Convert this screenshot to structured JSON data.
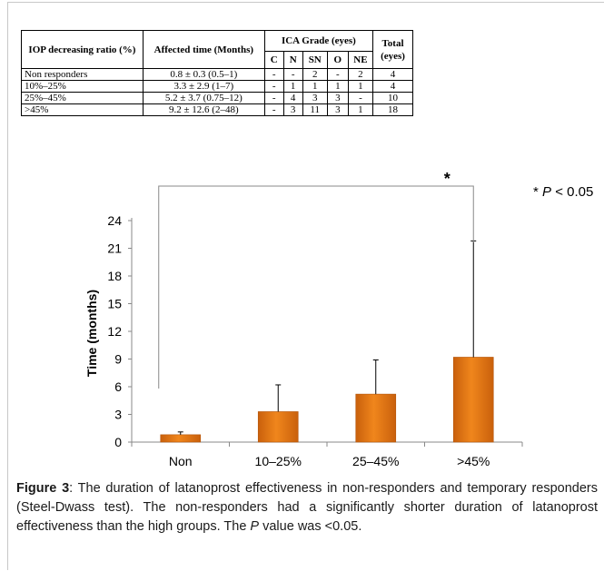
{
  "table": {
    "headers": {
      "ratio": "IOP decreasing ratio (%)",
      "time": "Affected time (Months)",
      "ica": "ICA Grade (eyes)",
      "total": "Total (eyes)",
      "sub": [
        "C",
        "N",
        "SN",
        "O",
        "NE"
      ]
    },
    "rows": [
      {
        "ratio": "Non responders",
        "time": "0.8 ± 0.3 (0.5–1)",
        "c": "-",
        "n": "-",
        "sn": "2",
        "o": "-",
        "ne": "2",
        "total": "4"
      },
      {
        "ratio": "10%–25%",
        "time": "3.3 ± 2.9 (1–7)",
        "c": "-",
        "n": "1",
        "sn": "1",
        "o": "1",
        "ne": "1",
        "total": "4"
      },
      {
        "ratio": "25%–45%",
        "time": "5.2 ± 3.7 (0.75–12)",
        "c": "-",
        "n": "4",
        "sn": "3",
        "o": "3",
        "ne": "-",
        "total": "10"
      },
      {
        "ratio": ">45%",
        "time": "9.2 ± 12.6 (2–48)",
        "c": "-",
        "n": "3",
        "sn": "11",
        "o": "3",
        "ne": "1",
        "total": "18"
      }
    ]
  },
  "chart_data": {
    "type": "bar",
    "categories": [
      "Non",
      "10–25%",
      "25–45%",
      ">45%"
    ],
    "values": [
      0.8,
      3.3,
      5.2,
      9.2
    ],
    "errors": [
      0.3,
      2.9,
      3.7,
      12.6
    ],
    "ylabel": "Time (months)",
    "xlabel": "",
    "ylim": [
      0,
      24
    ],
    "yticks": [
      "0",
      "3",
      "6",
      "9",
      "12",
      "15",
      "18",
      "21",
      "24"
    ],
    "significance": {
      "marker": "*",
      "from": "Non",
      "to": ">45%",
      "note_prefix": "* ",
      "note_p": "P",
      "note_rest": " < 0.05"
    },
    "bar_color": "#f0861c",
    "grid": false
  },
  "caption": {
    "label": "Figure 3",
    "text_a": ": The duration of latanoprost effectiveness in non-responders and temporary responders (Steel-Dwass test). The non-responders had a significantly shorter duration of latanoprost effectiveness than the high groups. The ",
    "p": "P",
    "text_b": " value was <0.05."
  }
}
